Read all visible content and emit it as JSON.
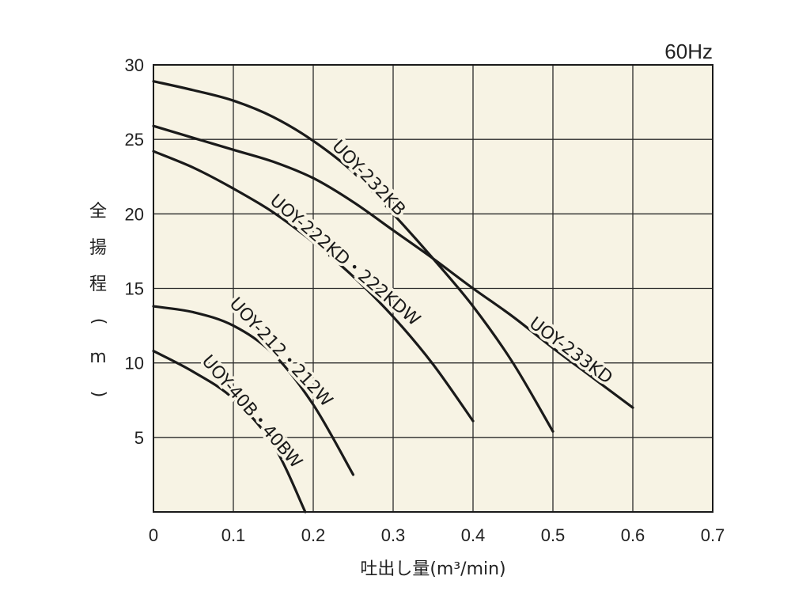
{
  "chart_data": {
    "type": "line",
    "frequency_label": "60Hz",
    "xlabel": "吐出し量(m³/min)",
    "ylabel": "全揚程(m)",
    "xlim": [
      0,
      0.7
    ],
    "ylim": [
      0,
      30
    ],
    "x_ticks": [
      0,
      0.1,
      0.2,
      0.3,
      0.4,
      0.5,
      0.6,
      0.7
    ],
    "x_tick_labels": [
      "0",
      "0.1",
      "0.2",
      "0.3",
      "0.4",
      "0.5",
      "0.6",
      "0.7"
    ],
    "y_ticks": [
      5,
      10,
      15,
      20,
      25,
      30
    ],
    "y_tick_labels": [
      "5",
      "10",
      "15",
      "20",
      "25",
      "30"
    ],
    "grid": true,
    "background_color": "#f7f3e4",
    "line_color": "#1a1a1a",
    "series": [
      {
        "name": "UOY-232KB",
        "x": [
          0,
          0.05,
          0.1,
          0.15,
          0.2,
          0.25,
          0.3,
          0.35,
          0.4,
          0.45,
          0.5
        ],
        "y": [
          28.9,
          28.3,
          27.6,
          26.5,
          24.9,
          22.8,
          20.0,
          17.0,
          13.8,
          10.0,
          5.4
        ]
      },
      {
        "name": "UOY-233KD",
        "x": [
          0,
          0.05,
          0.1,
          0.15,
          0.2,
          0.25,
          0.3,
          0.35,
          0.4,
          0.45,
          0.5,
          0.55,
          0.6
        ],
        "y": [
          25.9,
          25.1,
          24.3,
          23.5,
          22.4,
          20.8,
          18.9,
          17.0,
          15.0,
          13.1,
          11.0,
          9.0,
          7.0
        ]
      },
      {
        "name": "UOY-222KD・222KDW",
        "x": [
          0,
          0.05,
          0.1,
          0.15,
          0.2,
          0.25,
          0.3,
          0.35,
          0.4
        ],
        "y": [
          24.2,
          23.1,
          21.7,
          20.1,
          18.1,
          15.8,
          13.1,
          9.9,
          6.1
        ]
      },
      {
        "name": "UOY-212・212W",
        "x": [
          0,
          0.05,
          0.1,
          0.15,
          0.2,
          0.25
        ],
        "y": [
          13.8,
          13.4,
          12.5,
          10.6,
          7.2,
          2.5
        ]
      },
      {
        "name": "UOY-40B・40BW",
        "x": [
          0,
          0.05,
          0.1,
          0.15,
          0.19
        ],
        "y": [
          10.8,
          9.4,
          7.6,
          4.5,
          0
        ]
      }
    ]
  }
}
